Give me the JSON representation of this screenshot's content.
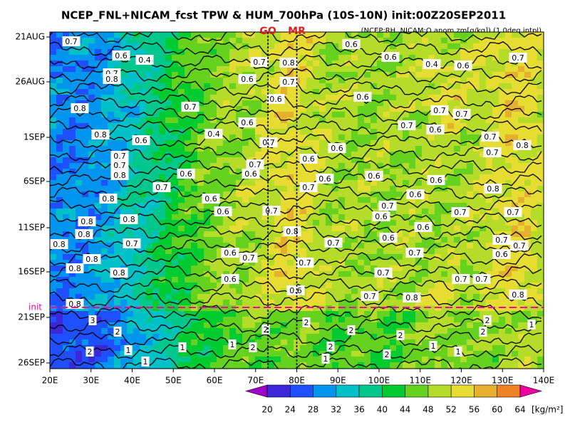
{
  "chart_data": {
    "type": "hovmoller",
    "title": "NCEP_FNL+NICAM_fcst TPW & HUM_700hPa (10S-10N) init:00Z20SEP2011",
    "subtitle": "(NCEP:RH, NICAM:Q anom zm[g/kg]) (1.0deg intpl)",
    "xlim": [
      20,
      140
    ],
    "xticks": [
      {
        "value": 20,
        "label": "20E"
      },
      {
        "value": 30,
        "label": "30E"
      },
      {
        "value": 40,
        "label": "40E"
      },
      {
        "value": 50,
        "label": "50E"
      },
      {
        "value": 60,
        "label": "60E"
      },
      {
        "value": 70,
        "label": "70E"
      },
      {
        "value": 80,
        "label": "80E"
      },
      {
        "value": 90,
        "label": "90E"
      },
      {
        "value": 100,
        "label": "100E"
      },
      {
        "value": 110,
        "label": "110E"
      },
      {
        "value": 120,
        "label": "120E"
      },
      {
        "value": 130,
        "label": "130E"
      },
      {
        "value": 140,
        "label": "140E"
      }
    ],
    "yticks": [
      "21AUG",
      "26AUG",
      "1SEP",
      "6SEP",
      "11SEP",
      "16SEP",
      "21SEP",
      "26SEP"
    ],
    "markers": [
      {
        "label": "GO",
        "lon": 73
      },
      {
        "label": "MR",
        "lon": 80
      }
    ],
    "init_label": "init",
    "colorbar": {
      "levels": [
        20,
        24,
        28,
        32,
        36,
        40,
        44,
        48,
        52,
        56,
        60,
        64
      ],
      "colors": [
        "#a000c8",
        "#3c28d8",
        "#1e50ff",
        "#0096f0",
        "#00c0c8",
        "#00c88c",
        "#00cc32",
        "#64d21e",
        "#b4dc28",
        "#e6dc32",
        "#e6af2d",
        "#f08228",
        "#f03c3c",
        "#f000a0"
      ],
      "unit": "[kg/m²]"
    },
    "contour_labels": [
      "0.7",
      "0.6",
      "0.4",
      "0.7",
      "0.8",
      "0.6",
      "0.6",
      "0.4",
      "0.6",
      "0.7",
      "0.7",
      "0.8",
      "0.7",
      "0.6",
      "0.6",
      "0.6",
      "0.8",
      "0.7",
      "0.7",
      "0.7",
      "0.6",
      "0.7",
      "0.6",
      "0.8",
      "0.6",
      "0.4",
      "0.7",
      "0.6",
      "0.7",
      "0.7",
      "0.8",
      "0.7",
      "0.7",
      "0.8",
      "0.6",
      "0.7",
      "0.6",
      "0.6",
      "0.6",
      "0.6",
      "0.6",
      "0.7",
      "0.7",
      "0.8",
      "0.6",
      "0.8",
      "0.6",
      "0.7",
      "0.6",
      "0.7",
      "0.6",
      "0.7",
      "0.7",
      "0.8",
      "0.8",
      "0.8",
      "0.6",
      "0.8",
      "0.6",
      "0.8",
      "0.7",
      "0.7",
      "0.7",
      "0.7",
      "0.6",
      "0.8",
      "0.7",
      "0.7",
      "0.6",
      "0.8",
      "0.7",
      "0.8",
      "0.7",
      "0.6",
      "0.7",
      "0.7",
      "0.6",
      "0.7",
      "0.8",
      "0.8",
      "0.8",
      "3",
      "2",
      "2",
      "1",
      "2",
      "2",
      "2",
      "2",
      "2",
      "1",
      "1",
      "1",
      "2",
      "2",
      "1",
      "2",
      "2",
      "1",
      "1",
      "1"
    ]
  }
}
